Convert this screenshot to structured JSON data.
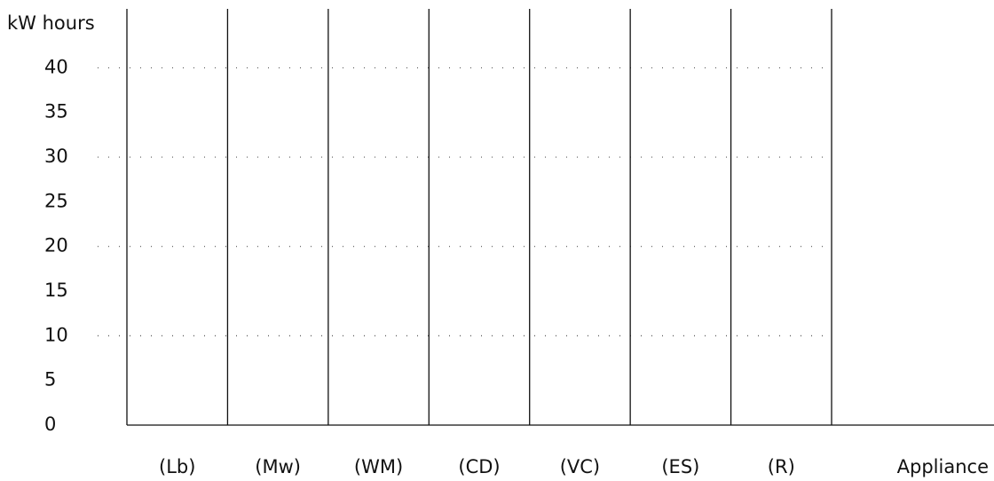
{
  "chart_data": {
    "type": "bar",
    "categories": [
      "(Lb)",
      "(Mw)",
      "(WM)",
      "(CD)",
      "(VC)",
      "(ES)",
      "(R)"
    ],
    "x_label": "Appliance",
    "y_label": "kW hours",
    "ylim": [
      0,
      46.6
    ],
    "yticks": [
      0,
      5,
      10,
      15,
      20,
      25,
      30,
      35,
      40
    ],
    "grid": true,
    "ygrid": [
      10,
      20,
      30,
      40
    ]
  }
}
